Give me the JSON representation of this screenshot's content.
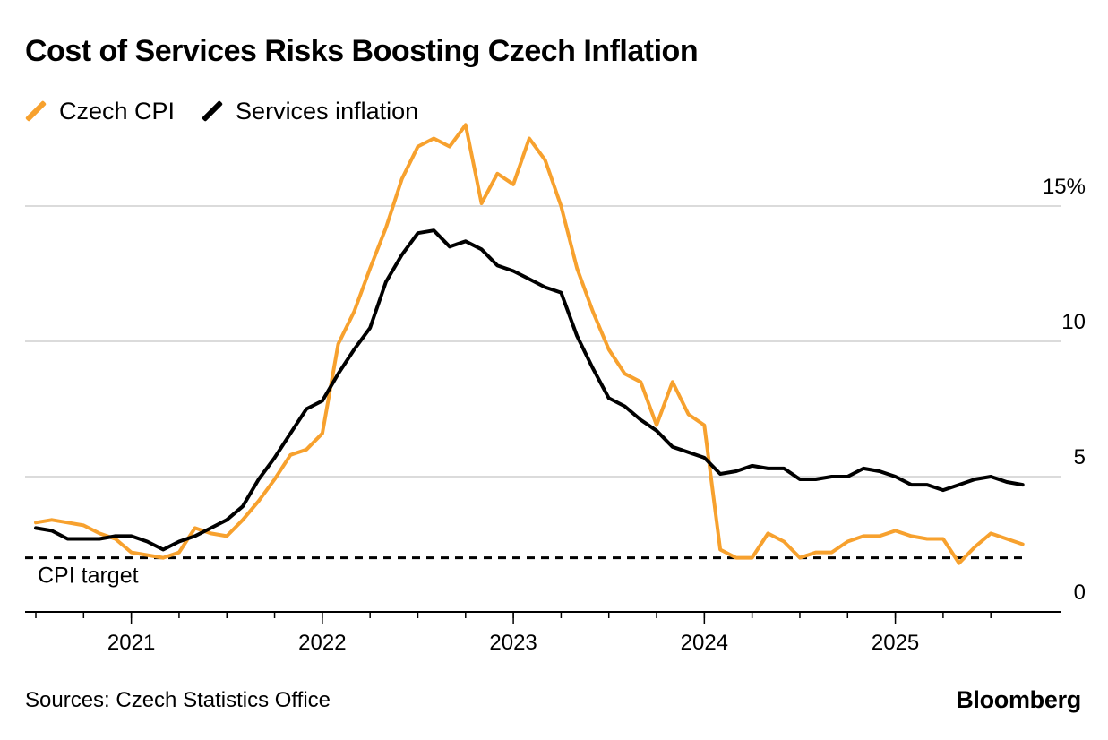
{
  "title": "Cost of Services Risks Boosting Czech Inflation",
  "source": "Sources: Czech Statistics Office",
  "brand": "Bloomberg",
  "colors": {
    "cpi": "#f7a12e",
    "services": "#000000",
    "grid": "#cfcfcf",
    "axis": "#000000"
  },
  "legend": [
    {
      "label": "Czech CPI",
      "color": "#f7a12e"
    },
    {
      "label": "Services inflation",
      "color": "#000000"
    }
  ],
  "chart_data": {
    "type": "line",
    "title": "Cost of Services Risks Boosting Czech Inflation",
    "xlabel": "",
    "ylabel": "",
    "ylim": [
      0,
      18
    ],
    "y_ticks": [
      {
        "value": 0,
        "label": "0"
      },
      {
        "value": 5,
        "label": "5"
      },
      {
        "value": 10,
        "label": "10"
      },
      {
        "value": 15,
        "label": "15%"
      }
    ],
    "x_range": [
      "2020-07",
      "2025-08"
    ],
    "x_ticks": [
      {
        "date": "2021-01",
        "label": "2021"
      },
      {
        "date": "2022-01",
        "label": "2022"
      },
      {
        "date": "2023-01",
        "label": "2023"
      },
      {
        "date": "2024-01",
        "label": "2024"
      },
      {
        "date": "2025-01",
        "label": "2025"
      }
    ],
    "grid": true,
    "legend_position": "top-left",
    "y_axis_side": "right",
    "annotations": [
      {
        "label": "CPI target",
        "value": 2,
        "style": "dashed"
      }
    ],
    "series": [
      {
        "name": "Czech CPI",
        "start": "2020-07",
        "values": [
          3.3,
          3.4,
          3.3,
          3.2,
          2.9,
          2.7,
          2.2,
          2.1,
          2.0,
          2.2,
          3.1,
          2.9,
          2.8,
          3.4,
          4.1,
          4.9,
          5.8,
          6.0,
          6.6,
          9.9,
          11.1,
          12.7,
          14.2,
          16.0,
          17.2,
          17.5,
          17.2,
          18.0,
          15.1,
          16.2,
          15.8,
          17.5,
          16.7,
          15.0,
          12.7,
          11.1,
          9.7,
          8.8,
          8.5,
          6.9,
          8.5,
          7.3,
          6.9,
          2.3,
          2.0,
          2.0,
          2.9,
          2.6,
          2.0,
          2.2,
          2.2,
          2.6,
          2.8,
          2.8,
          3.0,
          2.8,
          2.7,
          2.7,
          1.8,
          2.4,
          2.9,
          2.7,
          2.5
        ]
      },
      {
        "name": "Services inflation",
        "start": "2020-07",
        "values": [
          3.1,
          3.0,
          2.7,
          2.7,
          2.7,
          2.8,
          2.8,
          2.6,
          2.3,
          2.6,
          2.8,
          3.1,
          3.4,
          3.9,
          4.9,
          5.7,
          6.6,
          7.5,
          7.8,
          8.8,
          9.7,
          10.5,
          12.2,
          13.2,
          14.0,
          14.1,
          13.5,
          13.7,
          13.4,
          12.8,
          12.6,
          12.3,
          12.0,
          11.8,
          10.2,
          9.0,
          7.9,
          7.6,
          7.1,
          6.7,
          6.1,
          5.9,
          5.7,
          5.1,
          5.2,
          5.4,
          5.3,
          5.3,
          4.9,
          4.9,
          5.0,
          5.0,
          5.3,
          5.2,
          5.0,
          4.7,
          4.7,
          4.5,
          4.7,
          4.9,
          5.0,
          4.8,
          4.7
        ]
      }
    ]
  }
}
